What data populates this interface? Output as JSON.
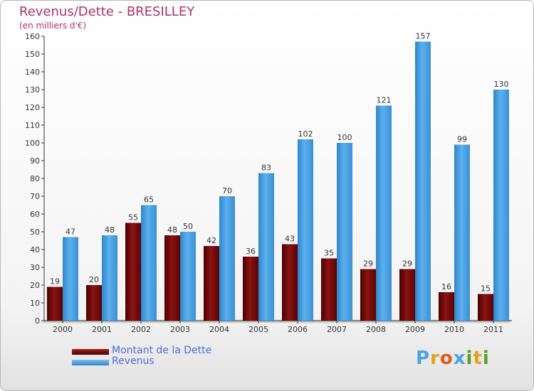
{
  "chart_data": {
    "type": "bar",
    "title": "Revenus/Dette - BRESILLEY",
    "subtitle": "(en milliers d'€)",
    "categories": [
      "2000",
      "2001",
      "2002",
      "2003",
      "2004",
      "2005",
      "2006",
      "2007",
      "2008",
      "2009",
      "2010",
      "2011"
    ],
    "series": [
      {
        "name": "Montant de la Dette",
        "color": "#7a0a0a",
        "values": [
          19,
          20,
          55,
          48,
          42,
          36,
          43,
          35,
          29,
          29,
          16,
          15
        ]
      },
      {
        "name": "Revenus",
        "color": "#4aa3e6",
        "values": [
          47,
          48,
          65,
          50,
          70,
          83,
          102,
          100,
          121,
          157,
          99,
          130
        ]
      }
    ],
    "ylim": [
      0,
      160
    ],
    "yticks": [
      0,
      10,
      20,
      30,
      40,
      50,
      60,
      70,
      80,
      90,
      100,
      110,
      120,
      130,
      140,
      150,
      160
    ],
    "grid": false,
    "legend_position": "bottom-left",
    "xlabel": "",
    "ylabel": ""
  },
  "logo": {
    "text": "Proxiti",
    "colors": [
      "#4aa3e6",
      "#e6a020",
      "#e05a20",
      "#4aa3e6",
      "#5aa02a",
      "#e6a020",
      "#5aa02a"
    ]
  }
}
